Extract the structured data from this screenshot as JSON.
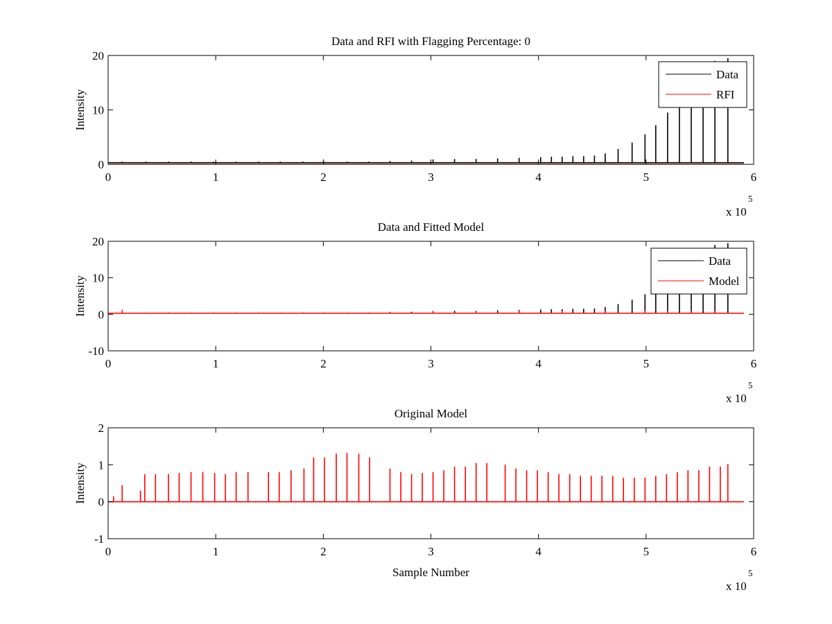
{
  "chart_data": [
    {
      "type": "line",
      "title": "Data and RFI with Flagging Percentage: 0",
      "xlabel": "",
      "ylabel": "Intensity",
      "xlim": [
        0,
        600000
      ],
      "ylim": [
        0,
        20
      ],
      "xticks": [
        0,
        1,
        2,
        3,
        4,
        5,
        6
      ],
      "yticks": [
        0,
        10,
        20
      ],
      "x_multiplier": "x 10",
      "x_multiplier_exp": "5",
      "legend": {
        "position": "top-right",
        "entries": [
          "Data",
          "RFI"
        ]
      },
      "grid": false,
      "series": [
        {
          "name": "Data",
          "color": "#000000",
          "baseline": 0.3,
          "peaks": [
            [
              13000,
              0.5
            ],
            [
              35000,
              0.5
            ],
            [
              56000,
              0.5
            ],
            [
              77000,
              0.5
            ],
            [
              98000,
              0.5
            ],
            [
              119000,
              0.5
            ],
            [
              140000,
              0.5
            ],
            [
              160000,
              0.5
            ],
            [
              181000,
              0.5
            ],
            [
              201000,
              0.5
            ],
            [
              222000,
              0.5
            ],
            [
              242000,
              0.5
            ],
            [
              262000,
              0.6
            ],
            [
              282000,
              0.7
            ],
            [
              302000,
              0.9
            ],
            [
              322000,
              1.0
            ],
            [
              342000,
              1.0
            ],
            [
              362000,
              1.1
            ],
            [
              382000,
              1.2
            ],
            [
              402000,
              1.3
            ],
            [
              412000,
              1.4
            ],
            [
              422000,
              1.4
            ],
            [
              432000,
              1.5
            ],
            [
              442000,
              1.5
            ],
            [
              452000,
              1.6
            ],
            [
              462000,
              2.0
            ],
            [
              474000,
              2.8
            ],
            [
              487000,
              4.0
            ],
            [
              499000,
              5.5
            ],
            [
              509000,
              7.2
            ],
            [
              520000,
              9.5
            ],
            [
              531000,
              12.5
            ],
            [
              542000,
              16.0
            ],
            [
              553000,
              18.0
            ],
            [
              564000,
              19.0
            ],
            [
              576000,
              19.5
            ]
          ]
        },
        {
          "name": "RFI",
          "color": "#ff0000",
          "peaks": []
        }
      ]
    },
    {
      "type": "line",
      "title": "Data and Fitted Model",
      "xlabel": "",
      "ylabel": "Intensity",
      "xlim": [
        0,
        600000
      ],
      "ylim": [
        -10,
        20
      ],
      "xticks": [
        0,
        1,
        2,
        3,
        4,
        5,
        6
      ],
      "yticks": [
        -10,
        0,
        10,
        20
      ],
      "x_multiplier": "x 10",
      "x_multiplier_exp": "5",
      "legend": {
        "position": "top-right",
        "entries": [
          "Data",
          "Model"
        ]
      },
      "grid": false,
      "series": [
        {
          "name": "Data",
          "color": "#000000",
          "baseline": 0.3,
          "peaks": [
            [
              13000,
              0.5
            ],
            [
              35000,
              0.5
            ],
            [
              56000,
              0.5
            ],
            [
              77000,
              0.5
            ],
            [
              98000,
              0.5
            ],
            [
              119000,
              0.5
            ],
            [
              140000,
              0.5
            ],
            [
              160000,
              0.5
            ],
            [
              181000,
              0.5
            ],
            [
              201000,
              0.5
            ],
            [
              222000,
              0.5
            ],
            [
              242000,
              0.5
            ],
            [
              262000,
              0.6
            ],
            [
              282000,
              0.7
            ],
            [
              302000,
              0.9
            ],
            [
              322000,
              1.0
            ],
            [
              342000,
              1.0
            ],
            [
              362000,
              1.1
            ],
            [
              382000,
              1.2
            ],
            [
              402000,
              1.3
            ],
            [
              412000,
              1.4
            ],
            [
              422000,
              1.4
            ],
            [
              432000,
              1.5
            ],
            [
              442000,
              1.5
            ],
            [
              452000,
              1.6
            ],
            [
              462000,
              2.0
            ],
            [
              474000,
              2.8
            ],
            [
              487000,
              4.0
            ],
            [
              499000,
              5.5
            ],
            [
              509000,
              7.2
            ],
            [
              520000,
              9.5
            ],
            [
              531000,
              12.5
            ],
            [
              542000,
              16.0
            ],
            [
              553000,
              18.0
            ],
            [
              564000,
              19.0
            ],
            [
              576000,
              19.5
            ]
          ]
        },
        {
          "name": "Model",
          "color": "#ff0000",
          "baseline": 0.3,
          "peaks": [
            [
              13000,
              1.3
            ],
            [
              35000,
              0.5
            ],
            [
              56000,
              0.5
            ],
            [
              98000,
              0.5
            ],
            [
              140000,
              0.5
            ],
            [
              181000,
              0.5
            ],
            [
              222000,
              0.5
            ],
            [
              262000,
              0.7
            ],
            [
              302000,
              0.8
            ],
            [
              342000,
              0.9
            ],
            [
              382000,
              1.0
            ],
            [
              422000,
              1.0
            ],
            [
              462000,
              1.0
            ],
            [
              499000,
              1.0
            ],
            [
              520000,
              1.0
            ],
            [
              542000,
              1.0
            ],
            [
              564000,
              1.0
            ]
          ]
        }
      ]
    },
    {
      "type": "line",
      "title": "Original Model",
      "xlabel": "Sample Number",
      "ylabel": "Intensity",
      "xlim": [
        0,
        600000
      ],
      "ylim": [
        -1,
        2
      ],
      "xticks": [
        0,
        1,
        2,
        3,
        4,
        5,
        6
      ],
      "yticks": [
        -1,
        0,
        1,
        2
      ],
      "x_multiplier": "x 10",
      "x_multiplier_exp": "5",
      "legend": null,
      "grid": false,
      "series": [
        {
          "name": "",
          "color": "#ff0000",
          "baseline": 0,
          "peaks": [
            [
              5000,
              0.15
            ],
            [
              13000,
              0.45
            ],
            [
              30000,
              0.3
            ],
            [
              34000,
              0.75
            ],
            [
              44000,
              0.75
            ],
            [
              56000,
              0.75
            ],
            [
              66000,
              0.78
            ],
            [
              77000,
              0.8
            ],
            [
              88000,
              0.8
            ],
            [
              99000,
              0.78
            ],
            [
              109000,
              0.75
            ],
            [
              119000,
              0.8
            ],
            [
              130000,
              0.8
            ],
            [
              149000,
              0.8
            ],
            [
              159000,
              0.8
            ],
            [
              170000,
              0.85
            ],
            [
              182000,
              0.9
            ],
            [
              191000,
              1.2
            ],
            [
              201000,
              1.2
            ],
            [
              212000,
              1.3
            ],
            [
              222000,
              1.32
            ],
            [
              233000,
              1.3
            ],
            [
              243000,
              1.2
            ],
            [
              262000,
              0.9
            ],
            [
              272000,
              0.8
            ],
            [
              282000,
              0.75
            ],
            [
              292000,
              0.78
            ],
            [
              302000,
              0.8
            ],
            [
              312000,
              0.85
            ],
            [
              322000,
              0.95
            ],
            [
              332000,
              0.95
            ],
            [
              342000,
              1.05
            ],
            [
              352000,
              1.05
            ],
            [
              369000,
              1.0
            ],
            [
              379000,
              0.9
            ],
            [
              389000,
              0.85
            ],
            [
              399000,
              0.85
            ],
            [
              409000,
              0.8
            ],
            [
              419000,
              0.75
            ],
            [
              429000,
              0.75
            ],
            [
              439000,
              0.7
            ],
            [
              449000,
              0.7
            ],
            [
              459000,
              0.7
            ],
            [
              469000,
              0.7
            ],
            [
              479000,
              0.65
            ],
            [
              489000,
              0.65
            ],
            [
              499000,
              0.65
            ],
            [
              509000,
              0.7
            ],
            [
              519000,
              0.75
            ],
            [
              529000,
              0.8
            ],
            [
              539000,
              0.85
            ],
            [
              549000,
              0.85
            ],
            [
              559000,
              0.95
            ],
            [
              569000,
              0.95
            ],
            [
              576000,
              1.02
            ]
          ]
        }
      ]
    }
  ]
}
